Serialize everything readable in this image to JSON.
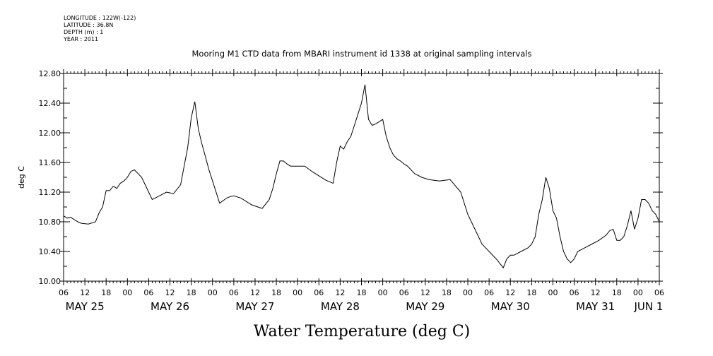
{
  "header": {
    "longitude": "LONGITUDE : 122W(-122)",
    "latitude": "LATITUDE : 36.8N",
    "depth": "DEPTH (m) : 1",
    "year": "YEAR : 2011"
  },
  "chart_data": {
    "type": "line",
    "title": "Mooring M1 CTD data from MBARI instrument id 1338 at original sampling intervals",
    "xlabel": "Water Temperature (deg C)",
    "ylabel": "deg C",
    "ylim": [
      10.0,
      12.8
    ],
    "yticks": [
      "10.00",
      "10.40",
      "10.80",
      "11.20",
      "11.60",
      "12.00",
      "12.40",
      "12.80"
    ],
    "xlim": [
      "2011-05-25T06:00",
      "2011-06-01T06:00"
    ],
    "hour_tick_labels": [
      "06",
      "12",
      "18",
      "00",
      "06",
      "12",
      "18",
      "00",
      "06",
      "12",
      "18",
      "00",
      "06",
      "12",
      "18",
      "00",
      "06",
      "12",
      "18",
      "00",
      "06",
      "12",
      "18",
      "00",
      "06",
      "12",
      "18",
      "00",
      "06"
    ],
    "day_labels": [
      {
        "text": "MAY 25",
        "x": "2011-05-25T12:00"
      },
      {
        "text": "MAY 26",
        "x": "2011-05-26T12:00"
      },
      {
        "text": "MAY 27",
        "x": "2011-05-27T12:00"
      },
      {
        "text": "MAY 28",
        "x": "2011-05-28T12:00"
      },
      {
        "text": "MAY 29",
        "x": "2011-05-29T12:00"
      },
      {
        "text": "MAY 30",
        "x": "2011-05-30T12:00"
      },
      {
        "text": "MAY 31",
        "x": "2011-05-31T12:00"
      },
      {
        "text": "JUN  1",
        "x": "2011-06-01T03:00"
      }
    ],
    "series": [
      {
        "x": [
          "2011-05-25T06:00",
          "2011-05-25T07:00",
          "2011-05-25T08:00",
          "2011-05-25T10:00",
          "2011-05-25T11:00",
          "2011-05-25T13:00",
          "2011-05-25T15:00",
          "2011-05-25T16:00",
          "2011-05-25T17:00",
          "2011-05-25T18:00",
          "2011-05-25T19:00",
          "2011-05-25T20:00",
          "2011-05-25T21:00",
          "2011-05-25T22:00",
          "2011-05-25T23:00",
          "2011-05-26T00:00",
          "2011-05-26T01:00",
          "2011-05-26T02:00",
          "2011-05-26T03:00",
          "2011-05-26T04:00",
          "2011-05-26T05:00",
          "2011-05-26T06:00",
          "2011-05-26T07:00",
          "2011-05-26T09:00",
          "2011-05-26T11:00",
          "2011-05-26T13:00",
          "2011-05-26T15:00",
          "2011-05-26T16:00",
          "2011-05-26T17:00",
          "2011-05-26T18:00",
          "2011-05-26T19:00",
          "2011-05-26T20:00",
          "2011-05-26T21:00",
          "2011-05-26T22:00",
          "2011-05-26T23:00",
          "2011-05-27T00:00",
          "2011-05-27T02:00",
          "2011-05-27T04:00",
          "2011-05-27T05:00",
          "2011-05-27T06:00",
          "2011-05-27T08:00",
          "2011-05-27T11:00",
          "2011-05-27T14:00",
          "2011-05-27T16:00",
          "2011-05-27T17:00",
          "2011-05-27T18:00",
          "2011-05-27T19:00",
          "2011-05-27T20:00",
          "2011-05-27T21:00",
          "2011-05-27T22:00",
          "2011-05-27T23:00",
          "2011-05-28T00:00",
          "2011-05-28T02:00",
          "2011-05-28T04:00",
          "2011-05-28T06:00",
          "2011-05-28T08:00",
          "2011-05-28T10:00",
          "2011-05-28T11:00",
          "2011-05-28T12:00",
          "2011-05-28T13:00",
          "2011-05-28T14:00",
          "2011-05-28T15:00",
          "2011-05-28T16:00",
          "2011-05-28T17:00",
          "2011-05-28T18:00",
          "2011-05-28T19:00",
          "2011-05-28T20:00",
          "2011-05-28T21:00",
          "2011-05-28T22:00",
          "2011-05-28T23:00",
          "2011-05-29T00:00",
          "2011-05-29T01:00",
          "2011-05-29T02:00",
          "2011-05-29T03:00",
          "2011-05-29T04:00",
          "2011-05-29T05:00",
          "2011-05-29T06:00",
          "2011-05-29T07:00",
          "2011-05-29T09:00",
          "2011-05-29T11:00",
          "2011-05-29T13:00",
          "2011-05-29T16:00",
          "2011-05-29T19:00",
          "2011-05-29T22:00",
          "2011-05-30T00:00",
          "2011-05-30T02:00",
          "2011-05-30T04:00",
          "2011-05-30T06:00",
          "2011-05-30T08:00",
          "2011-05-30T10:00",
          "2011-05-30T11:00",
          "2011-05-30T12:00",
          "2011-05-30T13:00",
          "2011-05-30T15:00",
          "2011-05-30T17:00",
          "2011-05-30T18:00",
          "2011-05-30T19:00",
          "2011-05-30T20:00",
          "2011-05-30T21:00",
          "2011-05-30T22:00",
          "2011-05-30T23:00",
          "2011-05-31T00:00",
          "2011-05-31T01:00",
          "2011-05-31T02:00",
          "2011-05-31T03:00",
          "2011-05-31T04:00",
          "2011-05-31T05:00",
          "2011-05-31T06:00",
          "2011-05-31T07:00",
          "2011-05-31T09:00",
          "2011-05-31T11:00",
          "2011-05-31T13:00",
          "2011-05-31T15:00",
          "2011-05-31T16:00",
          "2011-05-31T17:00",
          "2011-05-31T18:00",
          "2011-05-31T19:00",
          "2011-05-31T20:00",
          "2011-05-31T21:00",
          "2011-05-31T22:00",
          "2011-05-31T23:00",
          "2011-06-01T00:00",
          "2011-06-01T01:00",
          "2011-06-01T02:00",
          "2011-06-01T03:00",
          "2011-06-01T04:00",
          "2011-06-01T05:00",
          "2011-06-01T06:00"
        ],
        "y": [
          10.88,
          10.85,
          10.86,
          10.8,
          10.78,
          10.77,
          10.8,
          10.92,
          11.0,
          11.22,
          11.22,
          11.28,
          11.25,
          11.32,
          11.35,
          11.4,
          11.48,
          11.5,
          11.45,
          11.4,
          11.3,
          11.2,
          11.1,
          11.15,
          11.2,
          11.18,
          11.3,
          11.55,
          11.8,
          12.2,
          12.42,
          12.05,
          11.85,
          11.68,
          11.5,
          11.35,
          11.05,
          11.12,
          11.14,
          11.15,
          11.12,
          11.03,
          10.98,
          11.1,
          11.25,
          11.45,
          11.62,
          11.62,
          11.58,
          11.55,
          11.55,
          11.55,
          11.55,
          11.48,
          11.42,
          11.36,
          11.32,
          11.6,
          11.82,
          11.78,
          11.88,
          11.95,
          12.1,
          12.25,
          12.4,
          12.65,
          12.18,
          12.1,
          12.12,
          12.15,
          12.18,
          11.95,
          11.8,
          11.7,
          11.65,
          11.62,
          11.58,
          11.55,
          11.45,
          11.4,
          11.37,
          11.35,
          11.37,
          11.2,
          10.9,
          10.7,
          10.5,
          10.4,
          10.3,
          10.18,
          10.3,
          10.35,
          10.35,
          10.4,
          10.45,
          10.5,
          10.6,
          10.9,
          11.1,
          11.4,
          11.25,
          10.95,
          10.85,
          10.6,
          10.4,
          10.3,
          10.25,
          10.3,
          10.4,
          10.45,
          10.5,
          10.55,
          10.62,
          10.68,
          10.7,
          10.55,
          10.55,
          10.6,
          10.75,
          10.95,
          10.7,
          10.85,
          11.1,
          11.1,
          11.05,
          10.95,
          10.9,
          10.8
        ]
      }
    ],
    "grid": false,
    "line_color": "#000000"
  }
}
